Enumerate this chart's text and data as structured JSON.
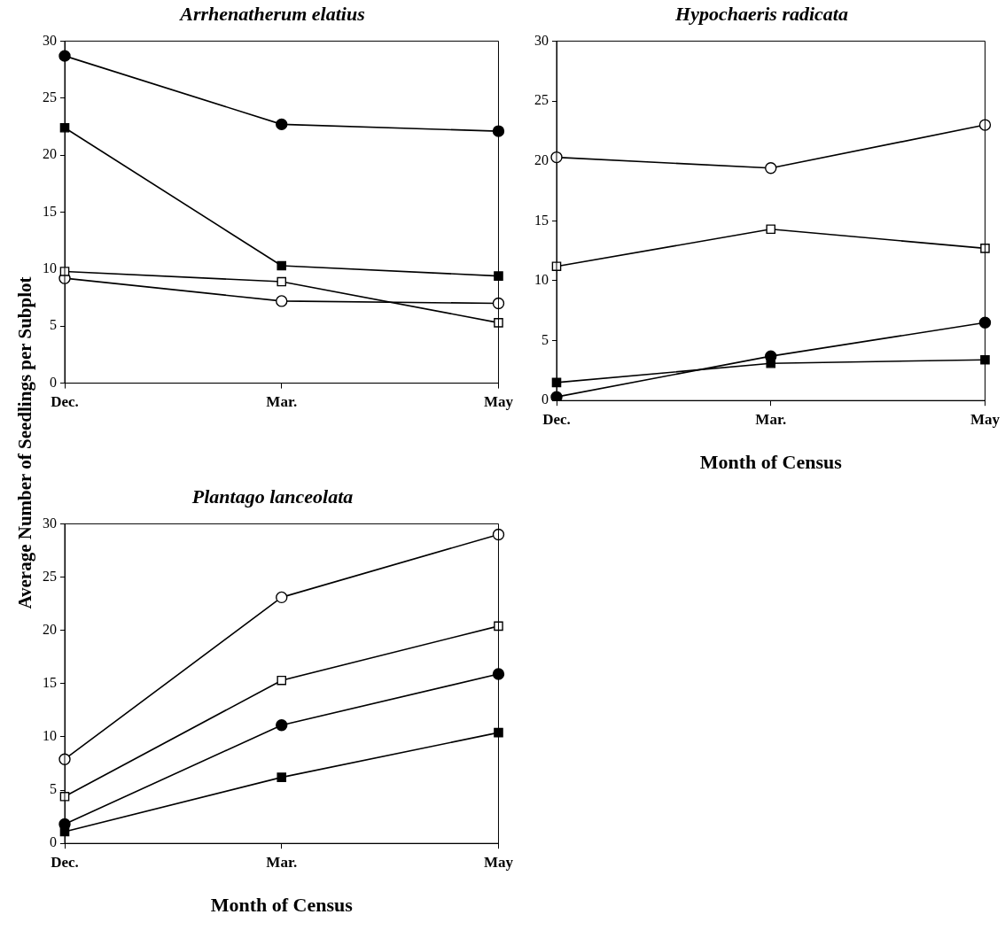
{
  "chart_data": [
    {
      "type": "line",
      "title": "Arrhenatherum elatius",
      "ylabel": "Average Number of Seedlings per Subplot",
      "categories": [
        "Dec.",
        "Mar.",
        "May"
      ],
      "ylim": [
        0,
        30
      ],
      "yticks": [
        0,
        5,
        10,
        15,
        20,
        25,
        30
      ],
      "grid": false,
      "legend": false,
      "line_style": "solid",
      "series": [
        {
          "color": "#000000",
          "marker": "circle",
          "values": [
            28.7,
            22.7,
            22.1
          ]
        },
        {
          "color": "#000000",
          "marker": "square",
          "values": [
            22.4,
            10.3,
            9.4
          ]
        },
        {
          "color": "#ffffff",
          "marker": "square",
          "values": [
            9.8,
            8.9,
            5.3
          ]
        },
        {
          "color": "#ffffff",
          "marker": "circle",
          "values": [
            9.2,
            7.2,
            7.0
          ]
        }
      ]
    },
    {
      "type": "line",
      "title": "Hypochaeris radicata",
      "xlabel": "Month of Census",
      "categories": [
        "Dec.",
        "Mar.",
        "May"
      ],
      "ylim": [
        0,
        30
      ],
      "yticks": [
        0,
        5,
        10,
        15,
        20,
        25,
        30
      ],
      "grid": false,
      "legend": false,
      "line_style": "solid",
      "series": [
        {
          "color": "#ffffff",
          "marker": "circle",
          "values": [
            20.3,
            19.4,
            23.0
          ]
        },
        {
          "color": "#ffffff",
          "marker": "square",
          "values": [
            11.2,
            14.3,
            12.7
          ]
        },
        {
          "color": "#000000",
          "marker": "circle",
          "values": [
            0.3,
            3.7,
            6.5
          ]
        },
        {
          "color": "#000000",
          "marker": "square",
          "values": [
            1.5,
            3.1,
            3.4
          ]
        }
      ]
    },
    {
      "type": "line",
      "title": "Plantago lanceolata",
      "xlabel": "Month of Census",
      "categories": [
        "Dec.",
        "Mar.",
        "May"
      ],
      "ylim": [
        0,
        30
      ],
      "yticks": [
        0,
        5,
        10,
        15,
        20,
        25,
        30
      ],
      "grid": false,
      "legend": false,
      "line_style": "solid",
      "series": [
        {
          "color": "#ffffff",
          "marker": "circle",
          "values": [
            7.9,
            23.1,
            29.0
          ]
        },
        {
          "color": "#ffffff",
          "marker": "square",
          "values": [
            4.4,
            15.3,
            20.4
          ]
        },
        {
          "color": "#000000",
          "marker": "circle",
          "values": [
            1.8,
            11.1,
            15.9
          ]
        },
        {
          "color": "#000000",
          "marker": "square",
          "values": [
            1.1,
            6.2,
            10.4
          ]
        }
      ]
    }
  ]
}
